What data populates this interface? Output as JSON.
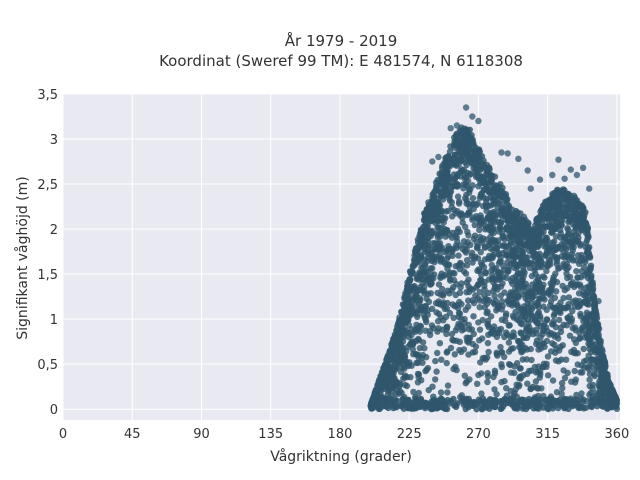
{
  "chart_data": {
    "type": "scatter",
    "title_line1": "År 1979 - 2019",
    "title_line2": "Koordinat (Sweref 99 TM): E 481574, N 6118308",
    "xlabel": "Vågriktning (grader)",
    "ylabel": "Signifikant våghöjd (m)",
    "xlim": [
      0,
      362
    ],
    "ylim": [
      -0.12,
      3.5
    ],
    "x_ticks": [
      0,
      45,
      90,
      135,
      180,
      225,
      270,
      315,
      360
    ],
    "x_tick_labels": [
      "0",
      "45",
      "90",
      "135",
      "180",
      "225",
      "270",
      "315",
      "360"
    ],
    "y_ticks": [
      0,
      0.5,
      1,
      1.5,
      2,
      2.5,
      3,
      3.5
    ],
    "y_tick_labels": [
      "0",
      "0,5",
      "1",
      "1,5",
      "2",
      "2,5",
      "3",
      "3,5"
    ],
    "grid": true,
    "legend": "none",
    "marker_color": "#2f566c",
    "background_color": "#e8e9f1",
    "envelope": {
      "x": [
        200,
        205,
        210,
        215,
        220,
        225,
        230,
        235,
        240,
        245,
        250,
        255,
        260,
        265,
        270,
        275,
        280,
        285,
        290,
        295,
        300,
        305,
        310,
        315,
        320,
        325,
        330,
        335,
        340,
        345,
        350,
        355,
        360
      ],
      "y_max": [
        0.05,
        0.3,
        0.55,
        0.8,
        1.1,
        1.5,
        1.85,
        2.2,
        2.4,
        2.65,
        2.85,
        3.05,
        3.15,
        3.1,
        2.9,
        2.75,
        2.6,
        2.5,
        2.3,
        2.2,
        2.15,
        2.0,
        2.2,
        2.35,
        2.45,
        2.45,
        2.4,
        2.35,
        2.2,
        1.3,
        0.7,
        0.3,
        0.1
      ]
    },
    "outliers": [
      {
        "x": 202,
        "y": 0.04
      },
      {
        "x": 240,
        "y": 2.75
      },
      {
        "x": 244,
        "y": 2.8
      },
      {
        "x": 252,
        "y": 3.12
      },
      {
        "x": 256,
        "y": 3.15
      },
      {
        "x": 262,
        "y": 3.35
      },
      {
        "x": 266,
        "y": 3.25
      },
      {
        "x": 270,
        "y": 3.2
      },
      {
        "x": 285,
        "y": 2.85
      },
      {
        "x": 289,
        "y": 2.84
      },
      {
        "x": 296,
        "y": 2.78
      },
      {
        "x": 302,
        "y": 2.65
      },
      {
        "x": 304,
        "y": 2.45
      },
      {
        "x": 310,
        "y": 2.55
      },
      {
        "x": 318,
        "y": 2.6
      },
      {
        "x": 322,
        "y": 2.77
      },
      {
        "x": 326,
        "y": 2.56
      },
      {
        "x": 330,
        "y": 2.66
      },
      {
        "x": 334,
        "y": 2.6
      },
      {
        "x": 338,
        "y": 2.68
      },
      {
        "x": 342,
        "y": 2.45
      },
      {
        "x": 348,
        "y": 1.2
      },
      {
        "x": 352,
        "y": 0.45
      },
      {
        "x": 357,
        "y": 0.12
      }
    ]
  }
}
